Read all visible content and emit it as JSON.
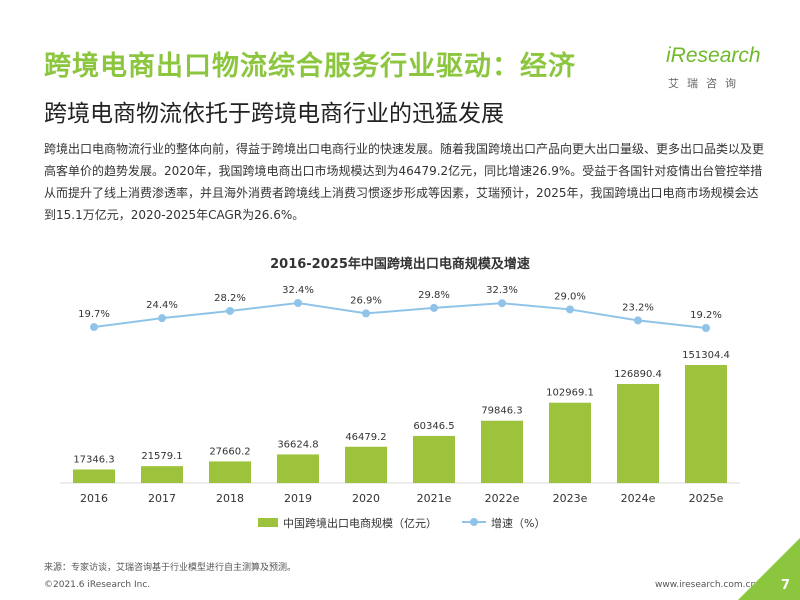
{
  "header": {
    "title": "跨境电商出口物流综合服务行业驱动：经济",
    "subtitle": "跨境电商物流依托于跨境电商行业的迅猛发展"
  },
  "logo": {
    "wordmark": "iResearch",
    "cn_name": "艾瑞咨询"
  },
  "intro": {
    "text": "跨境出口电商物流行业的整体向前，得益于跨境出口电商行业的快速发展。随着我国跨境出口产品向更大出口量级、更多出口品类以及更高客单价的趋势发展。2020年，我国跨境电商出口市场规模达到为46479.2亿元，同比增速26.9%。受益于各国针对疫情出台管控举措从而提升了线上消费渗透率，并且海外消费者跨境线上消费习惯逐步形成等因素，艾瑞预计，2025年，我国跨境出口电商市场规模会达到15.1万亿元，2020-2025年CAGR为26.6%。"
  },
  "chart_data": {
    "type": "bar",
    "title": "2016-2025年中国跨境出口电商规模及增速",
    "categories": [
      "2016",
      "2017",
      "2018",
      "2019",
      "2020",
      "2021e",
      "2022e",
      "2023e",
      "2024e",
      "2025e"
    ],
    "series": [
      {
        "name": "中国跨境出口电商规模（亿元）",
        "type": "bar",
        "values": [
          17346.3,
          21579.1,
          27660.2,
          36624.8,
          46479.2,
          60346.5,
          79846.3,
          102969.1,
          126890.4,
          151304.4
        ],
        "labels": [
          "17346.3",
          "21579.1",
          "27660.2",
          "36624.8",
          "46479.2",
          "60346.5",
          "79846.3",
          "102969.1",
          "126890.4",
          "151304.4"
        ]
      },
      {
        "name": "增速（%）",
        "type": "line",
        "values": [
          19.7,
          24.4,
          28.2,
          32.4,
          26.9,
          29.8,
          32.3,
          29.0,
          23.2,
          19.2
        ],
        "labels": [
          "19.7%",
          "24.4%",
          "28.2%",
          "32.4%",
          "26.9%",
          "29.8%",
          "32.3%",
          "29.0%",
          "23.2%",
          "19.2%"
        ]
      }
    ],
    "legend": "bottom-center",
    "grid": false,
    "colors": {
      "bar": "#9dc23b",
      "line": "#8fc4e8"
    }
  },
  "footer": {
    "source": "来源：专家访谈，艾瑞咨询基于行业模型进行自主测算及预测。",
    "copyright": "©2021.6 iResearch Inc.",
    "website": "www.iresearch.com.cn",
    "page_number": "7"
  }
}
